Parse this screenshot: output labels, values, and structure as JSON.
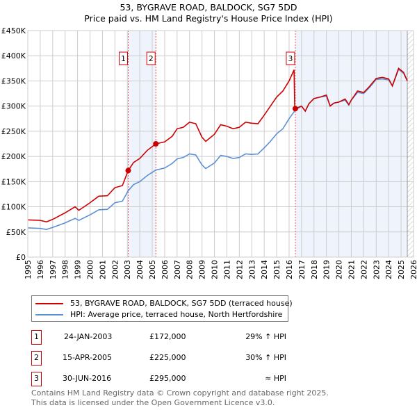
{
  "chart_data": {
    "type": "line",
    "title": "53, BYGRAVE ROAD, BALDOCK, SG7 5DD",
    "subtitle": "Price paid vs. HM Land Registry's House Price Index (HPI)",
    "xlim": [
      1995,
      2026
    ],
    "ylim": [
      0,
      450000
    ],
    "yticks": [
      0,
      50000,
      100000,
      150000,
      200000,
      250000,
      300000,
      350000,
      400000,
      450000
    ],
    "ytick_labels": [
      "£0",
      "£50K",
      "£100K",
      "£150K",
      "£200K",
      "£250K",
      "£300K",
      "£350K",
      "£400K",
      "£450K"
    ],
    "xticks": [
      "1995",
      "1996",
      "1997",
      "1998",
      "1999",
      "2000",
      "2001",
      "2002",
      "2003",
      "2004",
      "2005",
      "2006",
      "2007",
      "2008",
      "2009",
      "2010",
      "2011",
      "2012",
      "2013",
      "2014",
      "2015",
      "2016",
      "2017",
      "2018",
      "2019",
      "2020",
      "2021",
      "2022",
      "2023",
      "2024",
      "2025",
      "2026"
    ],
    "grid": true,
    "shaded_ranges": [
      [
        2003.07,
        2005.29
      ],
      [
        2016.5,
        2025.5
      ]
    ],
    "hatched_from": 2025.5,
    "series": [
      {
        "name": "53, BYGRAVE ROAD, BALDOCK, SG7 5DD (terraced house)",
        "color": "#cc0000",
        "x": [
          1995,
          1996,
          1996.5,
          1997,
          1998,
          1998.8,
          1999.1,
          2000,
          2000.7,
          2001.4,
          2002,
          2002.6,
          2003.07,
          2003.5,
          2004,
          2004.6,
          2005.29,
          2006,
          2006.6,
          2007,
          2007.5,
          2008,
          2008.5,
          2009,
          2009.3,
          2010,
          2010.5,
          2011,
          2011.5,
          2012,
          2012.5,
          2013,
          2013.5,
          2014,
          2014.5,
          2015,
          2015.5,
          2016,
          2016.4,
          2016.45,
          2016.5,
          2017,
          2017.3,
          2017.6,
          2018,
          2018.5,
          2019,
          2019.3,
          2019.6,
          2020,
          2020.5,
          2020.8,
          2021,
          2021.5,
          2022,
          2022.5,
          2023,
          2023.5,
          2024,
          2024.3,
          2024.8,
          2025.2,
          2025.5
        ],
        "y": [
          74000,
          73000,
          70000,
          75000,
          88000,
          100000,
          93000,
          108000,
          121000,
          122000,
          138000,
          142000,
          172000,
          188000,
          196000,
          212000,
          225000,
          229000,
          240000,
          255000,
          258000,
          268000,
          265000,
          238000,
          230000,
          244000,
          263000,
          260000,
          255000,
          258000,
          268000,
          266000,
          265000,
          282000,
          300000,
          318000,
          330000,
          350000,
          372000,
          300000,
          295000,
          300000,
          290000,
          305000,
          315000,
          318000,
          322000,
          300000,
          306000,
          308000,
          314000,
          303000,
          312000,
          330000,
          327000,
          340000,
          355000,
          357000,
          354000,
          340000,
          375000,
          367000,
          350000
        ]
      },
      {
        "name": "HPI: Average price, terraced house, North Hertfordshire",
        "color": "#5b8fd4",
        "x": [
          1995,
          1996,
          1996.5,
          1997,
          1998,
          1998.8,
          1999.1,
          2000,
          2000.7,
          2001.4,
          2002,
          2002.6,
          2003.07,
          2003.5,
          2004,
          2004.6,
          2005.29,
          2006,
          2006.6,
          2007,
          2007.5,
          2008,
          2008.5,
          2009,
          2009.3,
          2010,
          2010.5,
          2011,
          2011.5,
          2012,
          2012.5,
          2013,
          2013.5,
          2014,
          2014.5,
          2015,
          2015.5,
          2016,
          2016.5,
          2017,
          2017.3,
          2017.6,
          2018,
          2018.5,
          2019,
          2019.3,
          2019.6,
          2020,
          2020.5,
          2020.8,
          2021,
          2021.5,
          2022,
          2022.5,
          2023,
          2023.5,
          2024,
          2024.3,
          2024.8,
          2025.2,
          2025.5
        ],
        "y": [
          58000,
          57000,
          55000,
          59000,
          68000,
          77000,
          73000,
          84000,
          94000,
          95000,
          108000,
          111000,
          132000,
          144000,
          150000,
          162000,
          173000,
          177000,
          186000,
          195000,
          198000,
          205000,
          203000,
          183000,
          176000,
          187000,
          202000,
          200000,
          196000,
          198000,
          205000,
          204000,
          205000,
          217000,
          230000,
          245000,
          255000,
          275000,
          292000,
          300000,
          290000,
          305000,
          315000,
          318000,
          320000,
          300000,
          306000,
          308000,
          312000,
          302000,
          312000,
          327000,
          325000,
          338000,
          353000,
          354000,
          352000,
          340000,
          373000,
          365000,
          350000
        ]
      }
    ],
    "markers": [
      {
        "x": 2003.07,
        "y": 172000,
        "label": "1"
      },
      {
        "x": 2005.29,
        "y": 225000,
        "label": "2"
      },
      {
        "x": 2016.5,
        "y": 295000,
        "label": "3"
      }
    ]
  },
  "legend": {
    "property": "53, BYGRAVE ROAD, BALDOCK, SG7 5DD (terraced house)",
    "hpi": "HPI: Average price, terraced house, North Hertfordshire"
  },
  "transactions": [
    {
      "num": "1",
      "date": "24-JAN-2003",
      "price": "£172,000",
      "hpi": "29% ↑ HPI"
    },
    {
      "num": "2",
      "date": "15-APR-2005",
      "price": "£225,000",
      "hpi": "30% ↑ HPI"
    },
    {
      "num": "3",
      "date": "30-JUN-2016",
      "price": "£295,000",
      "hpi": "≈ HPI"
    }
  ],
  "footer": {
    "line1": "Contains HM Land Registry data © Crown copyright and database right 2025.",
    "line2": "This data is licensed under the Open Government Licence v3.0."
  }
}
